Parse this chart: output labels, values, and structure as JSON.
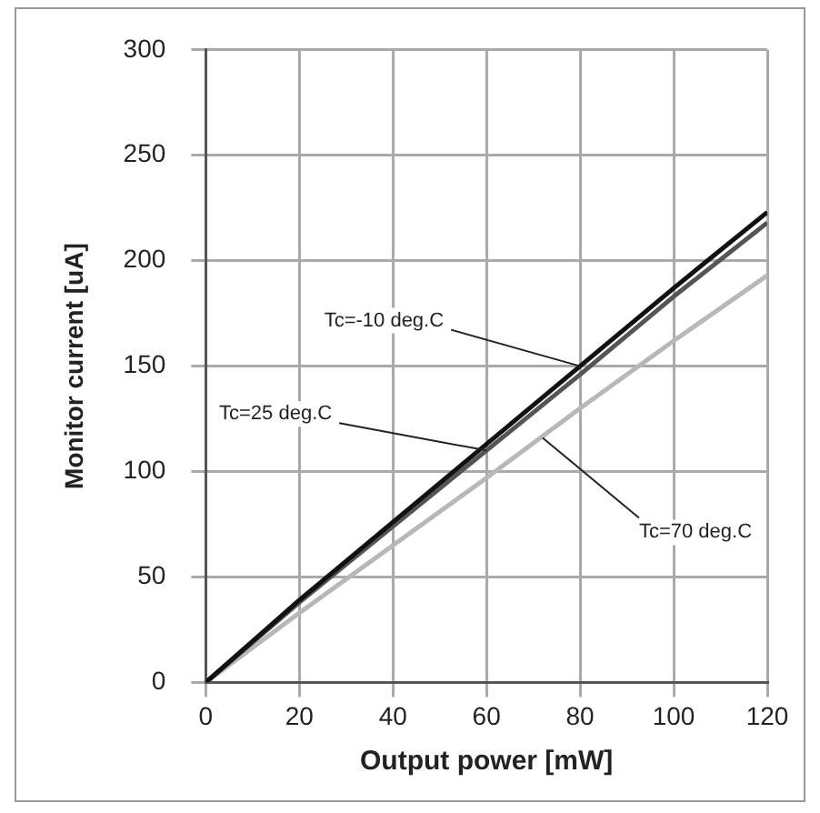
{
  "chart_data": {
    "type": "line",
    "xlabel": "Output power [mW]",
    "ylabel": "Monitor current [uA]",
    "x": [
      0,
      20,
      40,
      60,
      80,
      100,
      120
    ],
    "series": [
      {
        "color": "#111111",
        "values": [
          0,
          39,
          76,
          113,
          150,
          187,
          223
        ]
      },
      {
        "color": "#555555",
        "values": [
          0,
          38,
          74,
          110,
          146,
          183,
          218
        ]
      },
      {
        "color": "#b8b8b8",
        "values": [
          0,
          33,
          65,
          97,
          130,
          162,
          193
        ]
      }
    ],
    "xlim": [
      0,
      120
    ],
    "xticks": [
      0,
      20,
      40,
      60,
      80,
      100,
      120
    ],
    "ylim": [
      0,
      300
    ],
    "yticks": [
      0,
      50,
      100,
      150,
      200,
      250,
      300
    ],
    "grid": true,
    "legend": false,
    "marker": "none",
    "line_style": "solid",
    "annotations": [
      {
        "text": "Tc=-10 deg.C",
        "x": 80,
        "y": 150
      },
      {
        "text": "Tc=25 deg.C",
        "x": 60,
        "y": 110
      },
      {
        "text": "Tc=70 deg.C",
        "x": 72,
        "y": 116
      }
    ]
  }
}
